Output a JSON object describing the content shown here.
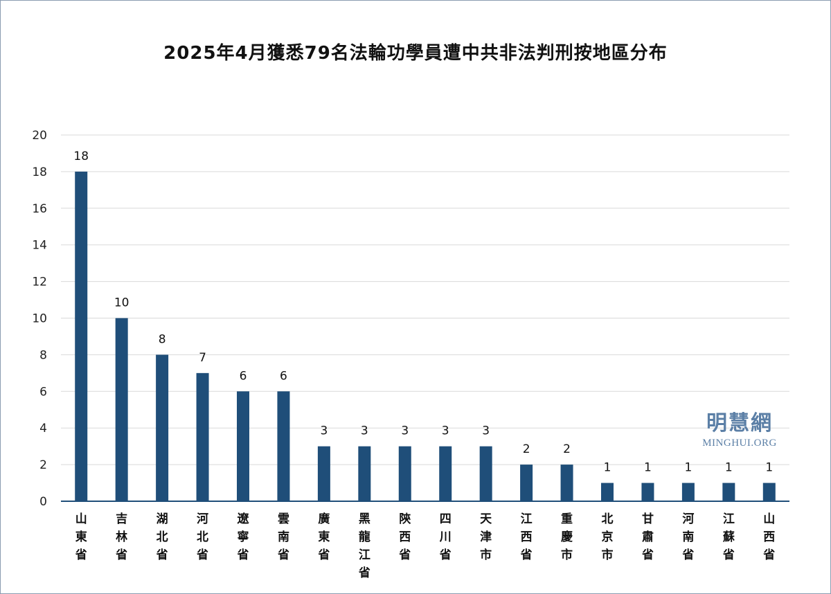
{
  "chart_data": {
    "type": "bar",
    "title": "2025年4月獲悉79名法輪功學員遭中共非法判刑按地區分布",
    "xlabel": "",
    "ylabel": "",
    "ylim": [
      0,
      20
    ],
    "yticks": [
      0,
      2,
      4,
      6,
      8,
      10,
      12,
      14,
      16,
      18,
      20
    ],
    "grid": true,
    "categories": [
      "山東省",
      "吉林省",
      "湖北省",
      "河北省",
      "遼寧省",
      "雲南省",
      "廣東省",
      "黑龍江省",
      "陝西省",
      "四川省",
      "天津市",
      "江西省",
      "重慶市",
      "北京市",
      "甘肅省",
      "河南省",
      "江蘇省",
      "山西省"
    ],
    "values": [
      18,
      10,
      8,
      7,
      6,
      6,
      3,
      3,
      3,
      3,
      3,
      2,
      2,
      1,
      1,
      1,
      1,
      1
    ],
    "bar_color": "#1f4e79"
  },
  "watermark": {
    "chinese": "明慧網",
    "english": "MINGHUI.ORG"
  },
  "colors": {
    "bar": "#1f4e79",
    "grid": "#d9d9d9",
    "axis": "#1f4e79",
    "watermark": "#5b7fa6",
    "frame": "#8a9bb0"
  }
}
